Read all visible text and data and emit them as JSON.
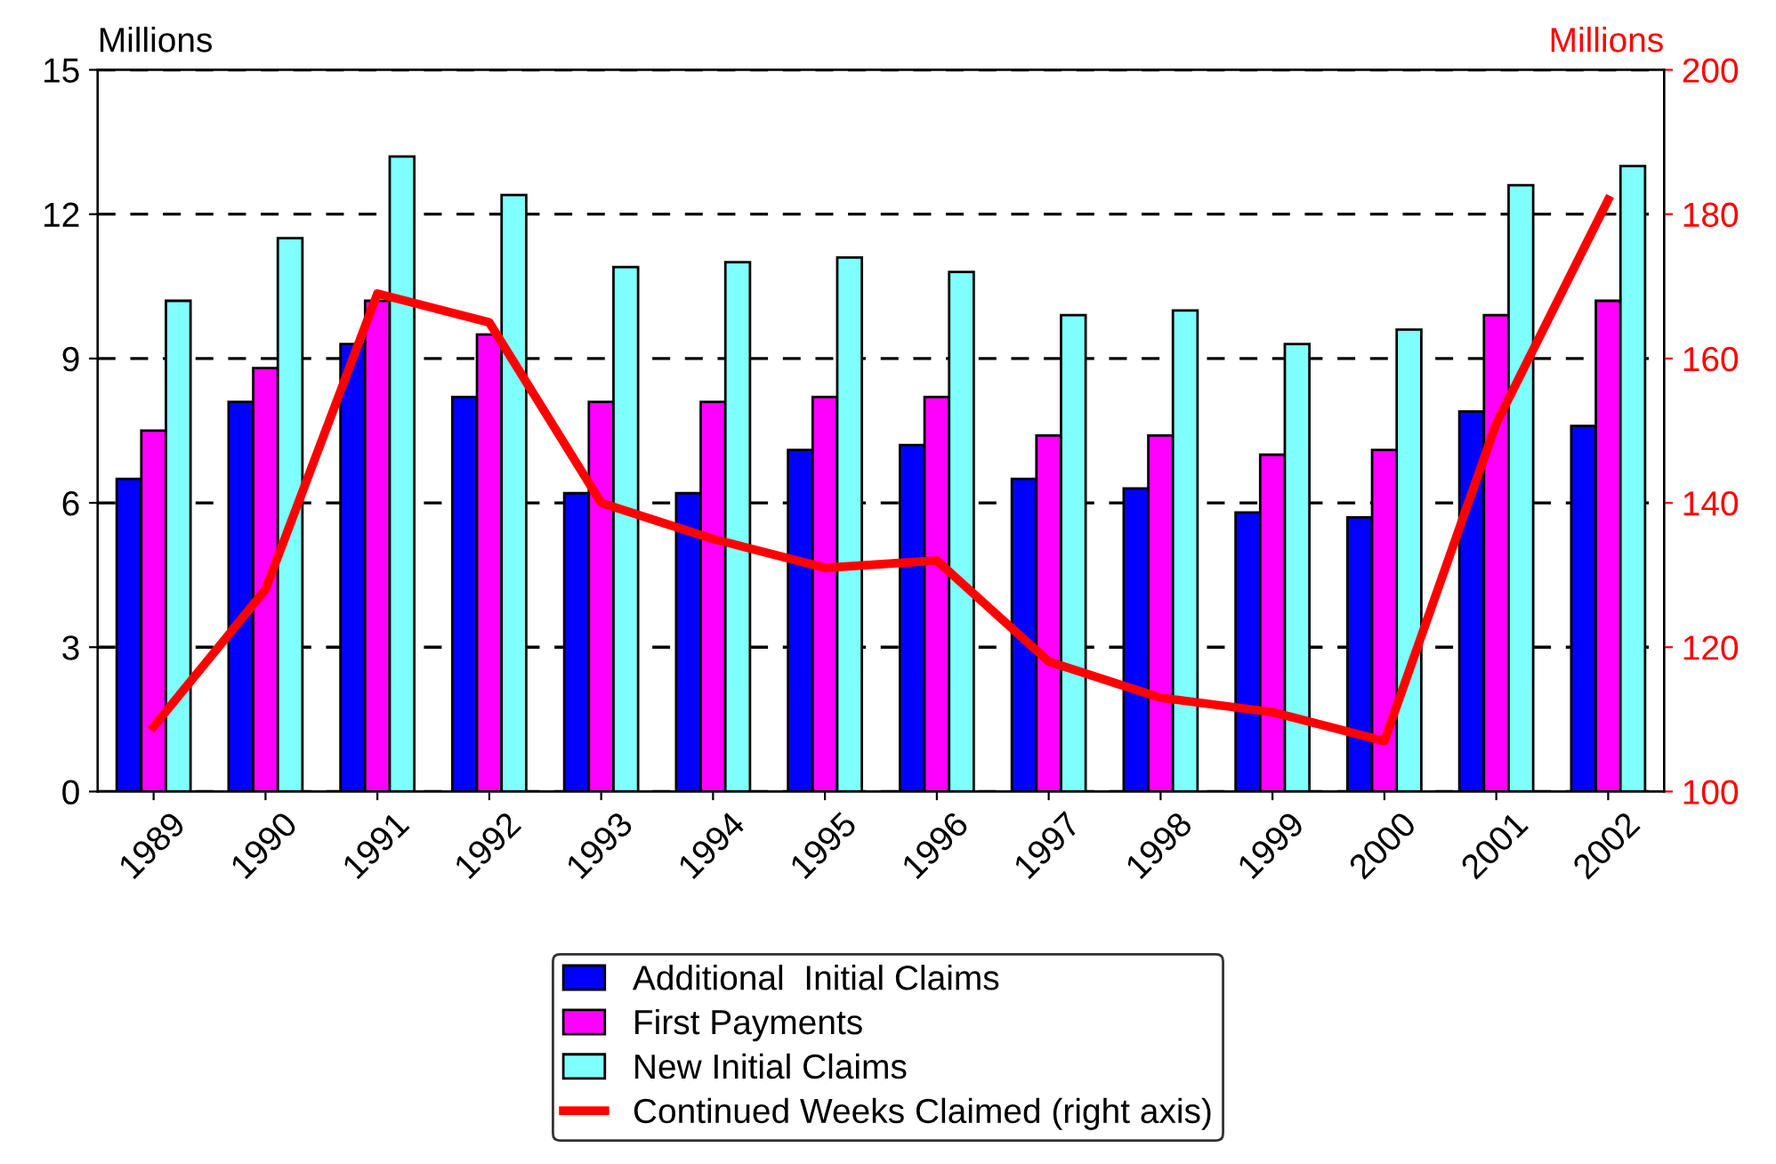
{
  "chart_data": {
    "type": "bar",
    "ylabel": "Millions",
    "y2label": "Millions",
    "categories": [
      "1989",
      "1990",
      "1991",
      "1992",
      "1993",
      "1994",
      "1995",
      "1996",
      "1997",
      "1998",
      "1999",
      "2000",
      "2001",
      "2002"
    ],
    "series": [
      {
        "name": "Additional  Initial Claims",
        "color": "#0000ff",
        "values": [
          6.5,
          8.1,
          9.3,
          8.2,
          6.2,
          6.2,
          7.1,
          7.2,
          6.5,
          6.3,
          5.8,
          5.7,
          7.9,
          7.6
        ]
      },
      {
        "name": "First Payments",
        "color": "#ff00ff",
        "values": [
          7.5,
          8.8,
          10.2,
          9.5,
          8.1,
          8.1,
          8.2,
          8.2,
          7.4,
          7.4,
          7.0,
          7.1,
          9.9,
          10.2
        ]
      },
      {
        "name": "New Initial Claims",
        "color": "#80ffff",
        "values": [
          10.2,
          11.5,
          13.2,
          12.4,
          10.9,
          11.0,
          11.1,
          10.8,
          9.9,
          10.0,
          9.3,
          9.6,
          12.6,
          13.0
        ]
      },
      {
        "name": "Continued Weeks Claimed (right axis)",
        "color": "#ff0000",
        "type": "line",
        "axis": "y2",
        "values": [
          109,
          128,
          169,
          165,
          140,
          135,
          131,
          132,
          118,
          113,
          111,
          107,
          151,
          182
        ]
      }
    ],
    "ylim": [
      0,
      15
    ],
    "yticks": [
      0,
      3,
      6,
      9,
      12,
      15
    ],
    "y2lim": [
      100,
      200
    ],
    "y2ticks": [
      100,
      120,
      140,
      160,
      180,
      200
    ],
    "grid": "y",
    "legend": "bottom",
    "marker": "none",
    "line_style": "solid"
  }
}
